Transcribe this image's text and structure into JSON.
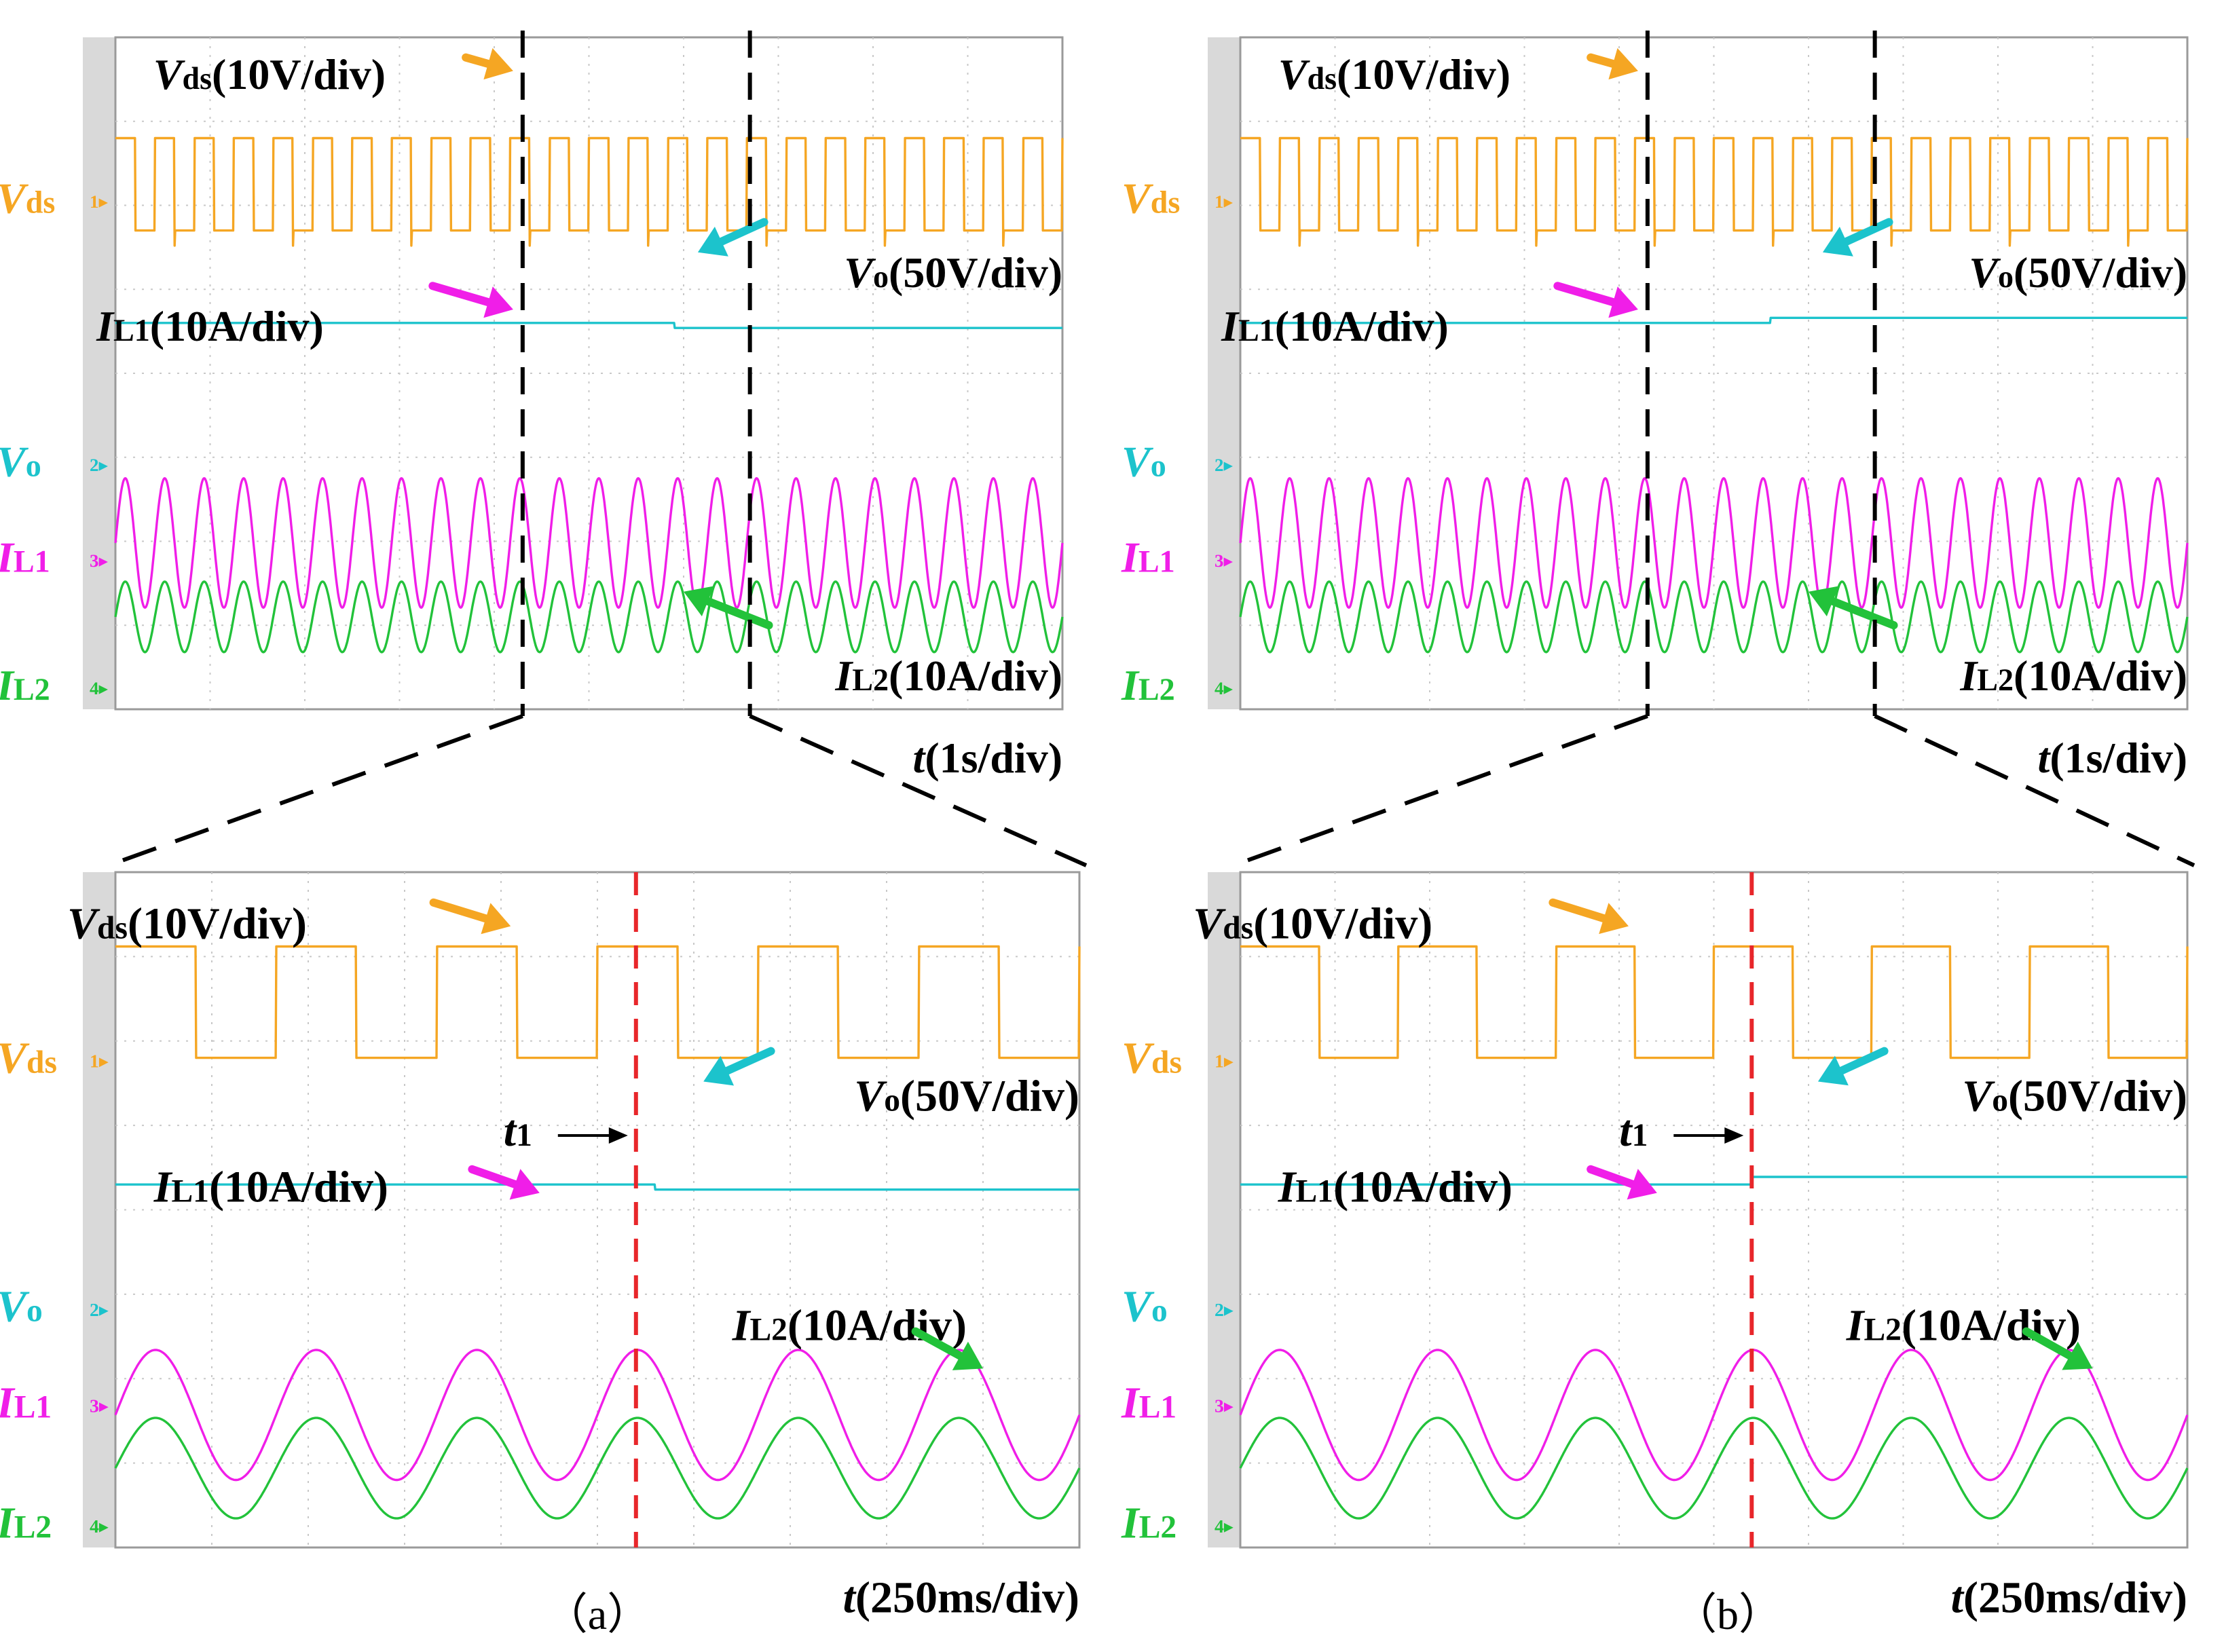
{
  "colors": {
    "vds": "#F5A623",
    "vo": "#1CC3CC",
    "il1": "#F01EE8",
    "il2": "#22C23A",
    "cursor": "#E8262A",
    "grid": "#C8C8C8",
    "black": "#000000"
  },
  "chart_data": [
    {
      "id": "a-top",
      "type": "line",
      "panel": "(a)",
      "view": "overview",
      "x_scale": "1s/div",
      "x_divisions": 10,
      "y_divisions": 8,
      "labels": {
        "vds_scale": {
          "sym": "V",
          "sub": "ds",
          "scale": "(10V/div)"
        },
        "vo_scale": {
          "sym": "V",
          "sub": "o",
          "scale": "(50V/div)"
        },
        "il1_scale": {
          "sym": "I",
          "sub": "L1",
          "scale": "(10A/div)"
        },
        "il2_scale": {
          "sym": "I",
          "sub": "L2",
          "scale": "(10A/div)"
        },
        "time": {
          "sym": "t",
          "rest": "(1s/div)"
        }
      },
      "channel_names": [
        {
          "sym": "V",
          "sub": "ds",
          "marker": "1"
        },
        {
          "sym": "V",
          "sub": "o",
          "marker": "2"
        },
        {
          "sym": "I",
          "sub": "L1",
          "marker": "3"
        },
        {
          "sym": "I",
          "sub": "L2",
          "marker": "4"
        }
      ],
      "series": [
        {
          "name": "Vds",
          "waveform": "square",
          "cycles": 24,
          "level_div": [
            1.0,
            2.0
          ]
        },
        {
          "name": "Vo",
          "waveform": "step",
          "before_div": 0.0,
          "after_div": -0.1,
          "step_at_div": 5.9
        },
        {
          "name": "IL1",
          "waveform": "sine",
          "cycles": 24,
          "offset_div": -0.6,
          "amplitude_div": 1.1
        },
        {
          "name": "IL2",
          "waveform": "sine",
          "cycles": 24,
          "offset_div": 0.0,
          "amplitude_div": 0.6
        }
      ],
      "event_markers_div": [
        4.3,
        6.7
      ]
    },
    {
      "id": "a-bottom",
      "type": "line",
      "panel": "(a)",
      "view": "zoom",
      "x_scale": "250ms/div",
      "x_divisions": 10,
      "y_divisions": 8,
      "labels": {
        "vds_scale": {
          "sym": "V",
          "sub": "ds",
          "scale": "(10V/div)"
        },
        "vo_scale": {
          "sym": "V",
          "sub": "o",
          "scale": "(50V/div)"
        },
        "il1_scale": {
          "sym": "I",
          "sub": "L1",
          "scale": "(10A/div)"
        },
        "il2_scale": {
          "sym": "I",
          "sub": "L2",
          "scale": "(10A/div)"
        },
        "time": {
          "sym": "t",
          "rest": "(250ms/div)"
        },
        "event": {
          "sym": "t",
          "sub": "1"
        }
      },
      "channel_names": [
        {
          "sym": "V",
          "sub": "ds",
          "marker": "1"
        },
        {
          "sym": "V",
          "sub": "o",
          "marker": "2"
        },
        {
          "sym": "I",
          "sub": "L1",
          "marker": "3"
        },
        {
          "sym": "I",
          "sub": "L2",
          "marker": "4"
        }
      ],
      "series": [
        {
          "name": "Vds",
          "waveform": "square",
          "cycles": 6,
          "level_div": [
            1.0,
            2.4
          ]
        },
        {
          "name": "Vo",
          "waveform": "step",
          "before_div": 0.0,
          "after_div": -0.1,
          "step_at_div": 5.6
        },
        {
          "name": "IL1",
          "waveform": "sine",
          "cycles": 6,
          "offset_div": -0.9,
          "amplitude_div": 1.1
        },
        {
          "name": "IL2",
          "waveform": "sine",
          "cycles": 6,
          "offset_div": 0.2,
          "amplitude_div": 0.85
        }
      ],
      "event_marker_div": 5.4
    },
    {
      "id": "b-top",
      "type": "line",
      "panel": "(b)",
      "view": "overview",
      "x_scale": "1s/div",
      "x_divisions": 10,
      "y_divisions": 8,
      "labels": {
        "vds_scale": {
          "sym": "V",
          "sub": "ds",
          "scale": "(10V/div)"
        },
        "vo_scale": {
          "sym": "V",
          "sub": "o",
          "scale": "(50V/div)"
        },
        "il1_scale": {
          "sym": "I",
          "sub": "L1",
          "scale": "(10A/div)"
        },
        "il2_scale": {
          "sym": "I",
          "sub": "L2",
          "scale": "(10A/div)"
        },
        "time": {
          "sym": "t",
          "rest": "(1s/div)"
        }
      },
      "channel_names": [
        {
          "sym": "V",
          "sub": "ds",
          "marker": "1"
        },
        {
          "sym": "V",
          "sub": "o",
          "marker": "2"
        },
        {
          "sym": "I",
          "sub": "L1",
          "marker": "3"
        },
        {
          "sym": "I",
          "sub": "L2",
          "marker": "4"
        }
      ],
      "series": [
        {
          "name": "Vds",
          "waveform": "square",
          "cycles": 24,
          "level_div": [
            1.0,
            2.0
          ]
        },
        {
          "name": "Vo",
          "waveform": "step",
          "before_div": 0.0,
          "after_div": 0.1,
          "step_at_div": 5.6
        },
        {
          "name": "IL1",
          "waveform": "sine",
          "cycles": 24,
          "offset_div": -0.6,
          "amplitude_div": 1.1
        },
        {
          "name": "IL2",
          "waveform": "sine",
          "cycles": 24,
          "offset_div": 0.0,
          "amplitude_div": 0.6
        }
      ],
      "event_markers_div": [
        4.3,
        6.7
      ]
    },
    {
      "id": "b-bottom",
      "type": "line",
      "panel": "(b)",
      "view": "zoom",
      "x_scale": "250ms/div",
      "x_divisions": 10,
      "y_divisions": 8,
      "labels": {
        "vds_scale": {
          "sym": "V",
          "sub": "ds",
          "scale": "(10V/div)"
        },
        "vo_scale": {
          "sym": "V",
          "sub": "o",
          "scale": "(50V/div)"
        },
        "il1_scale": {
          "sym": "I",
          "sub": "L1",
          "scale": "(10A/div)"
        },
        "il2_scale": {
          "sym": "I",
          "sub": "L2",
          "scale": "(10A/div)"
        },
        "time": {
          "sym": "t",
          "rest": "(250ms/div)"
        },
        "event": {
          "sym": "t",
          "sub": "1"
        }
      },
      "channel_names": [
        {
          "sym": "V",
          "sub": "ds",
          "marker": "1"
        },
        {
          "sym": "V",
          "sub": "o",
          "marker": "2"
        },
        {
          "sym": "I",
          "sub": "L1",
          "marker": "3"
        },
        {
          "sym": "I",
          "sub": "L2",
          "marker": "4"
        }
      ],
      "series": [
        {
          "name": "Vds",
          "waveform": "square",
          "cycles": 6,
          "level_div": [
            1.0,
            2.4
          ]
        },
        {
          "name": "Vo",
          "waveform": "step",
          "before_div": 0.0,
          "after_div": 0.15,
          "step_at_div": 5.4
        },
        {
          "name": "IL1",
          "waveform": "sine",
          "cycles": 6,
          "offset_div": -0.9,
          "amplitude_div": 1.1
        },
        {
          "name": "IL2",
          "waveform": "sine",
          "cycles": 6,
          "offset_div": 0.2,
          "amplitude_div": 0.85
        }
      ],
      "event_marker_div": 5.4
    }
  ],
  "captions": [
    "（a）",
    "（b）"
  ]
}
